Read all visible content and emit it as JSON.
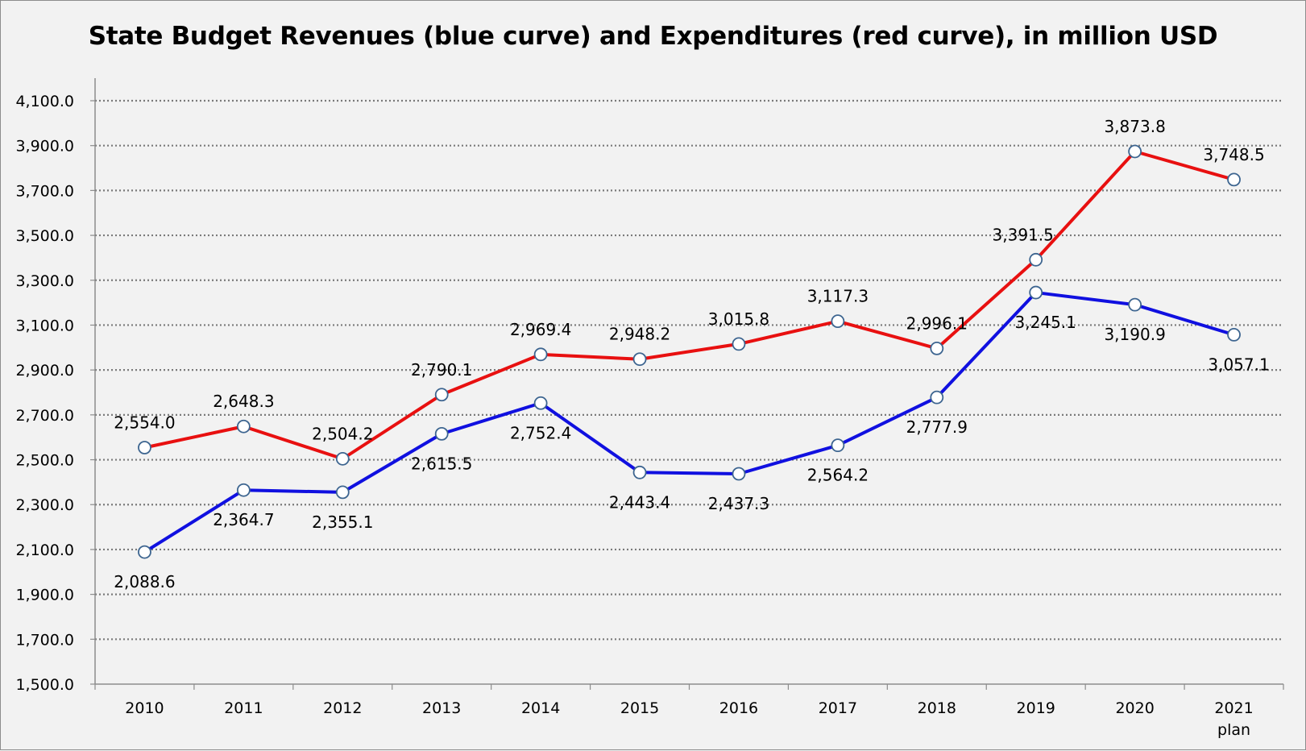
{
  "chart_data": {
    "type": "line",
    "title": "State Budget Revenues (blue curve) and Expenditures (red curve), in million USD",
    "xlabel": "",
    "ylabel": "",
    "categories": [
      [
        "2010"
      ],
      [
        "2011"
      ],
      [
        "2012"
      ],
      [
        "2013"
      ],
      [
        "2014"
      ],
      [
        "2015"
      ],
      [
        "2016"
      ],
      [
        "2017"
      ],
      [
        "2018"
      ],
      [
        "2019"
      ],
      [
        "2020"
      ],
      [
        "2021",
        "plan"
      ]
    ],
    "ylim": [
      1500,
      4100
    ],
    "yticks": [
      1500,
      1700,
      1900,
      2100,
      2300,
      2500,
      2700,
      2900,
      3100,
      3300,
      3500,
      3700,
      3900,
      4100
    ],
    "ytick_labels": [
      "1,500.0",
      "1,700.0",
      "1,900.0",
      "2,100.0",
      "2,300.0",
      "2,500.0",
      "2,700.0",
      "2,900.0",
      "3,100.0",
      "3,300.0",
      "3,500.0",
      "3,700.0",
      "3,900.0",
      "4,100.0"
    ],
    "grid": true,
    "legend": "none",
    "series": [
      {
        "color": "#e81010",
        "label_position": "above",
        "values": [
          2554.0,
          2648.3,
          2504.2,
          2790.1,
          2969.4,
          2948.2,
          3015.8,
          3117.3,
          2996.1,
          3391.5,
          3873.8,
          3748.5
        ],
        "labels": [
          "2,554.0",
          "2,648.3",
          "2,504.2",
          "2,790.1",
          "2,969.4",
          "2,948.2",
          "3,015.8",
          "3,117.3",
          "2,996.1",
          "3,391.5",
          "3,873.8",
          "3,748.5"
        ]
      },
      {
        "color": "#1010e0",
        "label_position": "below",
        "values": [
          2088.6,
          2364.7,
          2355.1,
          2615.5,
          2752.4,
          2443.4,
          2437.3,
          2564.2,
          2777.9,
          3245.1,
          3190.9,
          3057.1
        ],
        "labels": [
          "2,088.6",
          "2,364.7",
          "2,355.1",
          "2,615.5",
          "2,752.4",
          "2,443.4",
          "2,437.3",
          "2,564.2",
          "2,777.9",
          "3,245.1",
          "3,190.9",
          "3,057.1"
        ]
      }
    ]
  }
}
